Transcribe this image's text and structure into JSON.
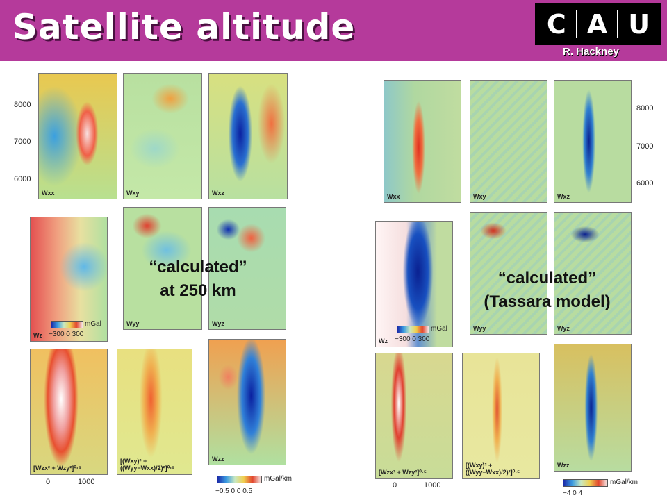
{
  "header": {
    "title": "Satellite altitude",
    "logo_text": [
      "C",
      "A",
      "U"
    ],
    "author": "R. Hackney"
  },
  "overlays": {
    "left": [
      "“calculated”",
      "at 250 km"
    ],
    "right": [
      "“calculated”",
      "(Tassara model)"
    ]
  },
  "left_group": {
    "panels": [
      "Wxx",
      "Wxy",
      "Wxz",
      "Wz",
      "Wyy",
      "Wyz",
      "[Wzx² + Wzy²]⁰⋅⁵",
      "[(Wxy)² + ((Wyy−Wxx)/2)²]⁰⋅⁵",
      "Wzz"
    ],
    "y_ticks": [
      "8000",
      "7000",
      "6000"
    ],
    "x_ticks": [
      "0",
      "1000"
    ],
    "gravity_cbar": {
      "ticks": "−300 0  300",
      "unit": "mGal"
    },
    "gradient_cbar": {
      "ticks": "−0.5  0.0   0.5",
      "unit": "mGal/km"
    }
  },
  "right_group": {
    "panels": [
      "Wxx",
      "Wxy",
      "Wxz",
      "Wz",
      "Wyy",
      "Wyz",
      "[Wzx² + Wzy²]⁰⋅⁵",
      "[(Wxy)² + ((Wyy−Wxx)/2)²]⁰⋅⁵",
      "Wzz"
    ],
    "y_ticks": [
      "8000",
      "7000",
      "6000"
    ],
    "x_ticks": [
      "0",
      "1000"
    ],
    "gravity_cbar": {
      "ticks": "−300 0  300",
      "unit": "mGal"
    },
    "gradient_cbar": {
      "ticks": "−4    0    4",
      "unit": "mGal/km"
    }
  }
}
